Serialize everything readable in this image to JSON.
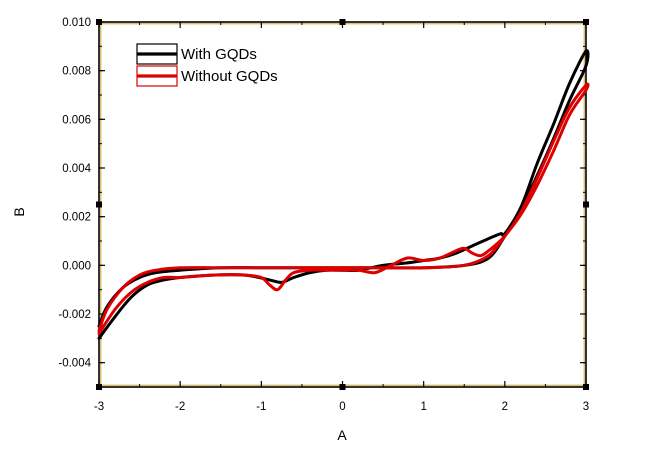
{
  "chart_data": {
    "type": "line",
    "xlabel": "A",
    "ylabel": "B",
    "xlim": [
      -3,
      3
    ],
    "ylim": [
      -0.005,
      0.01
    ],
    "xticks": [
      -3,
      -2,
      -1,
      0,
      1,
      2,
      3
    ],
    "xtick_labels": [
      "-3",
      "-2",
      "-1",
      "0",
      "1",
      "2",
      "3"
    ],
    "yticks": [
      -0.004,
      -0.002,
      0.0,
      0.002,
      0.004,
      0.006,
      0.008,
      0.01
    ],
    "ytick_labels": [
      "-0.004",
      "-0.002",
      "0.000",
      "0.002",
      "0.004",
      "0.006",
      "0.008",
      "0.010"
    ],
    "grid": false,
    "legend_position": "top-left",
    "series": [
      {
        "name": "With GQDs",
        "color": "#000000",
        "x": [
          -3.0,
          -2.8,
          -2.6,
          -2.4,
          -2.2,
          -2.0,
          -1.6,
          -1.2,
          -0.9,
          -0.75,
          -0.6,
          -0.4,
          -0.2,
          0.0,
          0.2,
          0.5,
          0.8,
          1.0,
          1.2,
          1.4,
          1.6,
          1.8,
          1.95,
          2.0,
          2.2,
          2.4,
          2.6,
          2.8,
          3.0,
          3.0,
          2.8,
          2.6,
          2.4,
          2.2,
          2.0,
          1.8,
          1.5,
          1.0,
          0.5,
          0.0,
          -0.5,
          -1.0,
          -1.5,
          -2.0,
          -2.3,
          -2.5,
          -2.7,
          -2.9,
          -3.0
        ],
        "y": [
          -0.003,
          -0.0021,
          -0.0013,
          -0.0008,
          -0.0006,
          -0.0005,
          -0.0004,
          -0.0004,
          -0.0006,
          -0.0007,
          -0.0005,
          -0.0003,
          -0.0002,
          -0.0002,
          -0.0002,
          0.0,
          0.0001,
          0.0002,
          0.0003,
          0.0005,
          0.0008,
          0.0011,
          0.0013,
          0.0013,
          0.0024,
          0.0042,
          0.0058,
          0.0075,
          0.0088,
          0.0082,
          0.0068,
          0.0052,
          0.0037,
          0.0023,
          0.0012,
          0.0003,
          0.0,
          -0.0001,
          -0.0001,
          -0.0001,
          -0.0001,
          -0.0001,
          -0.0001,
          -0.0002,
          -0.0003,
          -0.0005,
          -0.0009,
          -0.0017,
          -0.0025
        ]
      },
      {
        "name": "Without GQDs",
        "color": "#dd0000",
        "x": [
          -3.0,
          -2.8,
          -2.6,
          -2.4,
          -2.2,
          -2.0,
          -1.6,
          -1.2,
          -1.0,
          -0.9,
          -0.8,
          -0.7,
          -0.6,
          -0.4,
          -0.2,
          0.0,
          0.2,
          0.4,
          0.6,
          0.8,
          1.0,
          1.2,
          1.4,
          1.5,
          1.6,
          1.7,
          1.8,
          2.0,
          2.2,
          2.4,
          2.6,
          2.8,
          3.0,
          3.0,
          2.8,
          2.6,
          2.4,
          2.2,
          2.0,
          1.8,
          1.5,
          1.0,
          0.5,
          0.0,
          -0.5,
          -1.0,
          -1.5,
          -2.0,
          -2.3,
          -2.5,
          -2.7,
          -2.9,
          -3.0
        ],
        "y": [
          -0.0028,
          -0.0018,
          -0.0011,
          -0.0007,
          -0.0005,
          -0.0005,
          -0.0004,
          -0.0004,
          -0.0005,
          -0.0008,
          -0.001,
          -0.0006,
          -0.0003,
          -0.0002,
          -0.0002,
          -0.0002,
          -0.0002,
          -0.0003,
          0.0,
          0.0003,
          0.0002,
          0.0003,
          0.0006,
          0.0007,
          0.0005,
          0.0004,
          0.0006,
          0.0012,
          0.0022,
          0.0036,
          0.0051,
          0.0065,
          0.0074,
          0.0072,
          0.0062,
          0.0047,
          0.0033,
          0.0021,
          0.0012,
          0.0004,
          0.0,
          -0.0001,
          -0.0001,
          -0.0001,
          -0.0001,
          -0.0001,
          -0.0001,
          -0.0001,
          -0.0002,
          -0.0004,
          -0.0009,
          -0.0018,
          -0.0027
        ]
      }
    ]
  }
}
